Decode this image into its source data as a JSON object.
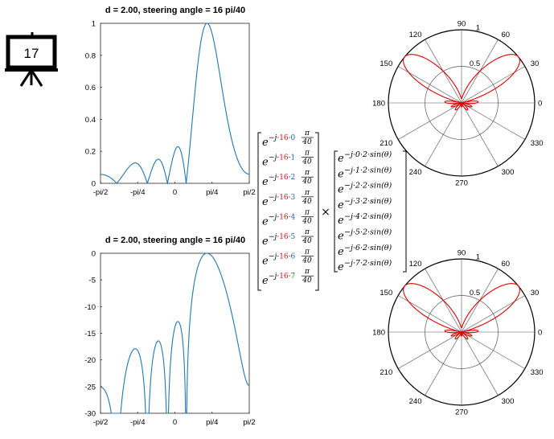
{
  "slide": {
    "number": "17"
  },
  "chart_data": [
    {
      "type": "line",
      "title": "d = 2.00, steering angle  = 16 pi/40",
      "xticks": [
        "-pi/2",
        "-pi/4",
        "0",
        "pi/4",
        "pi/2"
      ],
      "yticks": [
        "0",
        "0.2",
        "0.4",
        "0.6",
        "0.8",
        "1"
      ],
      "ylim": [
        0,
        1
      ],
      "series": [
        {
          "color": "#2077b4",
          "scale": "linear"
        }
      ]
    },
    {
      "type": "line",
      "title": "d = 2.00, steering angle  = 16 pi/40",
      "xticks": [
        "-pi/2",
        "-pi/4",
        "0",
        "pi/4",
        "pi/2"
      ],
      "yticks": [
        "0",
        "-5",
        "-10",
        "-15",
        "-20",
        "-25",
        "-30"
      ],
      "ylim": [
        -30,
        0
      ],
      "series": [
        {
          "color": "#2077b4",
          "scale": "dB"
        }
      ]
    },
    {
      "type": "polar",
      "angle_ticks": [
        "90",
        "60",
        "30",
        "0",
        "330",
        "300",
        "270",
        "240",
        "210",
        "180",
        "150",
        "120"
      ],
      "radius_ticks": [
        "0.5",
        "1"
      ],
      "series": [
        {
          "color": "#e00000",
          "scale": "linear"
        }
      ]
    },
    {
      "type": "polar",
      "angle_ticks": [
        "90",
        "60",
        "30",
        "0",
        "330",
        "300",
        "270",
        "240",
        "210",
        "180",
        "150",
        "120"
      ],
      "radius_ticks": [
        "0.5",
        "1"
      ],
      "series": [
        {
          "color": "#e00000",
          "scale": "linear"
        }
      ]
    }
  ],
  "model": {
    "element_spacing": 2,
    "steering_k": 16,
    "elements": 8
  },
  "equation": {
    "steering_terms": [
      {
        "base": "e",
        "exp_prefix": "−j·",
        "k": "16",
        "dot": "·",
        "n": "0",
        "frac_num": "π",
        "frac_den": "40"
      },
      {
        "base": "e",
        "exp_prefix": "−j·",
        "k": "16",
        "dot": "·",
        "n": "1",
        "frac_num": "π",
        "frac_den": "40"
      },
      {
        "base": "e",
        "exp_prefix": "−j·",
        "k": "16",
        "dot": "·",
        "n": "2",
        "frac_num": "π",
        "frac_den": "40"
      },
      {
        "base": "e",
        "exp_prefix": "−j·",
        "k": "16",
        "dot": "·",
        "n": "3",
        "frac_num": "π",
        "frac_den": "40"
      },
      {
        "base": "e",
        "exp_prefix": "−j·",
        "k": "16",
        "dot": "·",
        "n": "4",
        "frac_num": "π",
        "frac_den": "40"
      },
      {
        "base": "e",
        "exp_prefix": "−j·",
        "k": "16",
        "dot": "·",
        "n": "5",
        "frac_num": "π",
        "frac_den": "40"
      },
      {
        "base": "e",
        "exp_prefix": "−j·",
        "k": "16",
        "dot": "·",
        "n": "6",
        "frac_num": "π",
        "frac_den": "40"
      },
      {
        "base": "e",
        "exp_prefix": "−j·",
        "k": "16",
        "dot": "·",
        "n": "7",
        "frac_num": "π",
        "frac_den": "40"
      }
    ],
    "times": "×",
    "array_terms": [
      {
        "base": "e",
        "exp": "−j·0·2·sin(θ)"
      },
      {
        "base": "e",
        "exp": "−j·1·2·sin(θ)"
      },
      {
        "base": "e",
        "exp": "−j·2·2·sin(θ)"
      },
      {
        "base": "e",
        "exp": "−j·3·2·sin(θ)"
      },
      {
        "base": "e",
        "exp": "−j·4·2·sin(θ)"
      },
      {
        "base": "e",
        "exp": "−j·5·2·sin(θ)"
      },
      {
        "base": "e",
        "exp": "−j·6·2·sin(θ)"
      },
      {
        "base": "e",
        "exp": "−j·7·2·sin(θ)"
      }
    ]
  }
}
